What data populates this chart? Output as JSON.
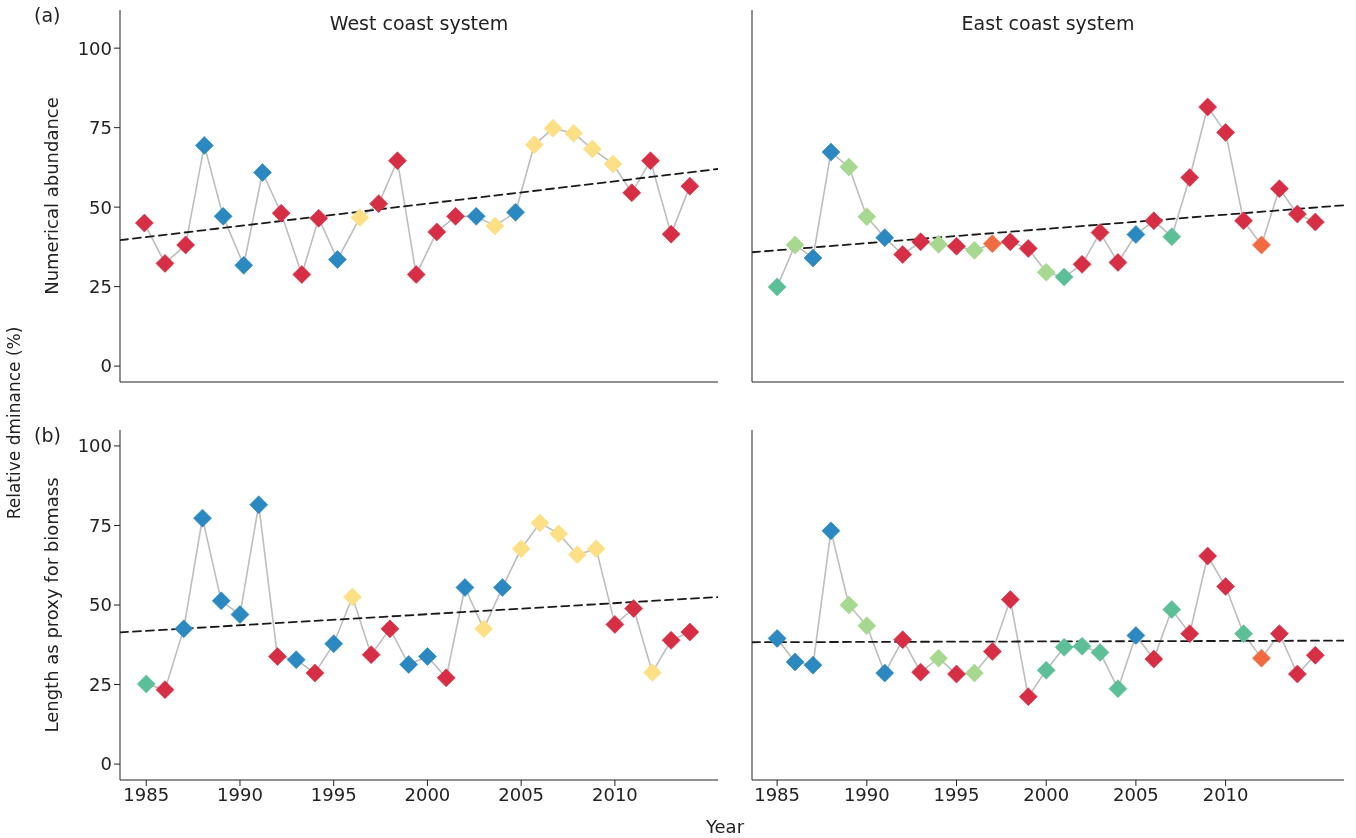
{
  "chart_data": [
    {
      "type": "line",
      "title": "West coast system",
      "ylabel": "Numerical abundance",
      "annotations": [
        "(a)",
        "Relative dminance (%)"
      ],
      "xlim": [
        1983.6,
        2015.5
      ],
      "xticks": [
        1985,
        1990,
        1995,
        2000,
        2005,
        2010
      ],
      "ylim": [
        -5,
        112
      ],
      "yticks": [
        0,
        25,
        50,
        75,
        100
      ],
      "tick_labels": "y",
      "series": [
        {
          "color": "#bdbdbd",
          "marker": "diamond",
          "x": [
            1984.9,
            1986.0,
            1987.1,
            1988.1,
            1989.1,
            1990.2,
            1991.2,
            1992.2,
            1993.3,
            1994.2,
            1995.2,
            1996.4,
            1997.4,
            1998.4,
            1999.4,
            2000.5,
            2001.5,
            2002.6,
            2003.6,
            2004.7,
            2005.7,
            2006.7,
            2007.8,
            2008.8,
            2009.9,
            2010.9,
            2011.9,
            2013.0,
            2014.0
          ],
          "values": [
            45,
            32.3,
            38.1,
            69.4,
            47.1,
            31.7,
            60.9,
            48.1,
            28.8,
            46.5,
            33.5,
            46.7,
            51.1,
            64.6,
            28.8,
            42.2,
            47.1,
            47.1,
            44.1,
            48.4,
            69.6,
            74.8,
            73.2,
            68.3,
            63.6,
            54.5,
            64.6,
            41.5,
            56.6
          ],
          "colors": [
            "#d62f45",
            "#d62f45",
            "#d62f45",
            "#2b88c0",
            "#2b88c0",
            "#2b88c0",
            "#2b88c0",
            "#d62f45",
            "#d62f45",
            "#d62f45",
            "#2b88c0",
            "#fddf85",
            "#d62f45",
            "#d62f45",
            "#d62f45",
            "#d62f45",
            "#d62f45",
            "#2b88c0",
            "#fddf85",
            "#2b88c0",
            "#fddf85",
            "#fddf85",
            "#fddf85",
            "#fddf85",
            "#fddf85",
            "#d62f45",
            "#d62f45",
            "#d62f45",
            "#d62f45"
          ]
        },
        {
          "color": "#1a1a1a",
          "marker": "none",
          "line_style": "dashed",
          "x": [
            1983.6,
            2015.5
          ],
          "values": [
            39.6,
            62
          ]
        }
      ]
    },
    {
      "type": "line",
      "title": "East coast system",
      "xlim": [
        1983.6,
        2016.6
      ],
      "xticks": [
        1985,
        1990,
        1995,
        2000,
        2005,
        2010
      ],
      "ylim": [
        -5,
        112
      ],
      "yticks": [
        0,
        25,
        50,
        75,
        100
      ],
      "tick_labels": false,
      "series": [
        {
          "color": "#bdbdbd",
          "marker": "diamond",
          "x": [
            1985,
            1986,
            1987,
            1988,
            1989,
            1990,
            1991,
            1992,
            1993,
            1994,
            1995,
            1996,
            1997,
            1998,
            1999,
            2000,
            2001,
            2002,
            2003,
            2004,
            2005,
            2006,
            2007,
            2008,
            2009,
            2010,
            2011,
            2012,
            2013,
            2014,
            2015
          ],
          "values": [
            24.9,
            38.1,
            34,
            67.3,
            62.6,
            47,
            40.4,
            35.1,
            39.1,
            38.3,
            37.7,
            36.4,
            38.5,
            39.1,
            37,
            29.5,
            28,
            32,
            42,
            32.6,
            41.4,
            45.7,
            40.7,
            59.3,
            81.5,
            73.5,
            45.7,
            38.1,
            55.8,
            47.8,
            45.3
          ],
          "colors": [
            "#5cbf97",
            "#a6d88f",
            "#2b88c0",
            "#2b88c0",
            "#a6d88f",
            "#a6d88f",
            "#2b88c0",
            "#d62f45",
            "#d62f45",
            "#a6d88f",
            "#d62f45",
            "#a6d88f",
            "#f26a3f",
            "#d62f45",
            "#d62f45",
            "#a6d88f",
            "#5cbf97",
            "#d62f45",
            "#d62f45",
            "#d62f45",
            "#2b88c0",
            "#d62f45",
            "#5cbf97",
            "#d62f45",
            "#d62f45",
            "#d62f45",
            "#d62f45",
            "#f26a3f",
            "#d62f45",
            "#d62f45",
            "#d62f45"
          ]
        },
        {
          "color": "#1a1a1a",
          "marker": "none",
          "line_style": "dashed",
          "x": [
            1983.6,
            2016.6
          ],
          "values": [
            35.8,
            50.6
          ]
        }
      ]
    },
    {
      "type": "line",
      "ylabel": "Length as proxy for biomass",
      "xlabel": "Year",
      "annotations": [
        "(b)"
      ],
      "xlim": [
        1983.6,
        2015.5
      ],
      "xticks": [
        1985,
        1990,
        1995,
        2000,
        2005,
        2010
      ],
      "ylim": [
        -5,
        105
      ],
      "yticks": [
        0,
        25,
        50,
        75,
        100
      ],
      "series": [
        {
          "color": "#bdbdbd",
          "marker": "diamond",
          "x": [
            1985,
            1986,
            1987,
            1988,
            1989,
            1990,
            1991,
            1992,
            1993,
            1994,
            1995,
            1996,
            1997,
            1998,
            1999,
            2000,
            2001,
            2002,
            2003,
            2004,
            2005,
            2006,
            2007,
            2008,
            2009,
            2010,
            2011,
            2012,
            2013,
            2014
          ],
          "values": [
            25.2,
            23.4,
            42.5,
            77.3,
            51.3,
            47,
            81.5,
            33.8,
            32.8,
            28.6,
            37.8,
            52.5,
            34.4,
            42.5,
            31.3,
            33.8,
            27.1,
            55.5,
            42.5,
            55.5,
            67.7,
            75.8,
            72.4,
            65.8,
            67.7,
            43.9,
            48.9,
            28.8,
            38.9,
            41.5
          ],
          "colors": [
            "#5cbf97",
            "#d62f45",
            "#2b88c0",
            "#2b88c0",
            "#2b88c0",
            "#2b88c0",
            "#2b88c0",
            "#d62f45",
            "#2b88c0",
            "#d62f45",
            "#2b88c0",
            "#fddf85",
            "#d62f45",
            "#d62f45",
            "#2b88c0",
            "#2b88c0",
            "#d62f45",
            "#2b88c0",
            "#fddf85",
            "#2b88c0",
            "#fddf85",
            "#fddf85",
            "#fddf85",
            "#fddf85",
            "#fddf85",
            "#d62f45",
            "#d62f45",
            "#fddf85",
            "#d62f45",
            "#d62f45"
          ]
        },
        {
          "color": "#1a1a1a",
          "marker": "none",
          "line_style": "dashed",
          "x": [
            1983.6,
            2015.5
          ],
          "values": [
            41.4,
            52.5
          ]
        }
      ]
    },
    {
      "type": "line",
      "xlim": [
        1983.6,
        2016.6
      ],
      "xticks": [
        1985,
        1990,
        1995,
        2000,
        2005,
        2010
      ],
      "ylim": [
        -5,
        105
      ],
      "yticks": [
        0,
        25,
        50,
        75,
        100
      ],
      "tick_labels": "x",
      "series": [
        {
          "color": "#bdbdbd",
          "marker": "diamond",
          "x": [
            1985,
            1986,
            1987,
            1988,
            1989,
            1990,
            1991,
            1992,
            1993,
            1994,
            1995,
            1996,
            1997,
            1998,
            1999,
            2000,
            2001,
            2002,
            2003,
            2004,
            2005,
            2006,
            2007,
            2008,
            2009,
            2010,
            2011,
            2012,
            2013,
            2014,
            2015
          ],
          "values": [
            39.5,
            32.1,
            31.1,
            73.3,
            50,
            43.5,
            28.6,
            39.1,
            28.9,
            33.3,
            28.3,
            28.6,
            35.4,
            51.7,
            21.2,
            29.5,
            36.7,
            37,
            35.1,
            23.7,
            40.4,
            33,
            48.6,
            41,
            65.4,
            55.8,
            41,
            33.3,
            41,
            28.3,
            34.2
          ],
          "colors": [
            "#2b88c0",
            "#2b88c0",
            "#2b88c0",
            "#2b88c0",
            "#a6d88f",
            "#a6d88f",
            "#2b88c0",
            "#d62f45",
            "#d62f45",
            "#a6d88f",
            "#d62f45",
            "#a6d88f",
            "#d62f45",
            "#d62f45",
            "#d62f45",
            "#5cbf97",
            "#5cbf97",
            "#5cbf97",
            "#5cbf97",
            "#5cbf97",
            "#2b88c0",
            "#d62f45",
            "#5cbf97",
            "#d62f45",
            "#d62f45",
            "#d62f45",
            "#5cbf97",
            "#f26a3f",
            "#d62f45",
            "#d62f45",
            "#d62f45"
          ]
        },
        {
          "color": "#1a1a1a",
          "marker": "none",
          "line_style": "dashed",
          "x": [
            1983.6,
            2016.6
          ],
          "values": [
            38.3,
            38.8
          ]
        }
      ]
    }
  ]
}
